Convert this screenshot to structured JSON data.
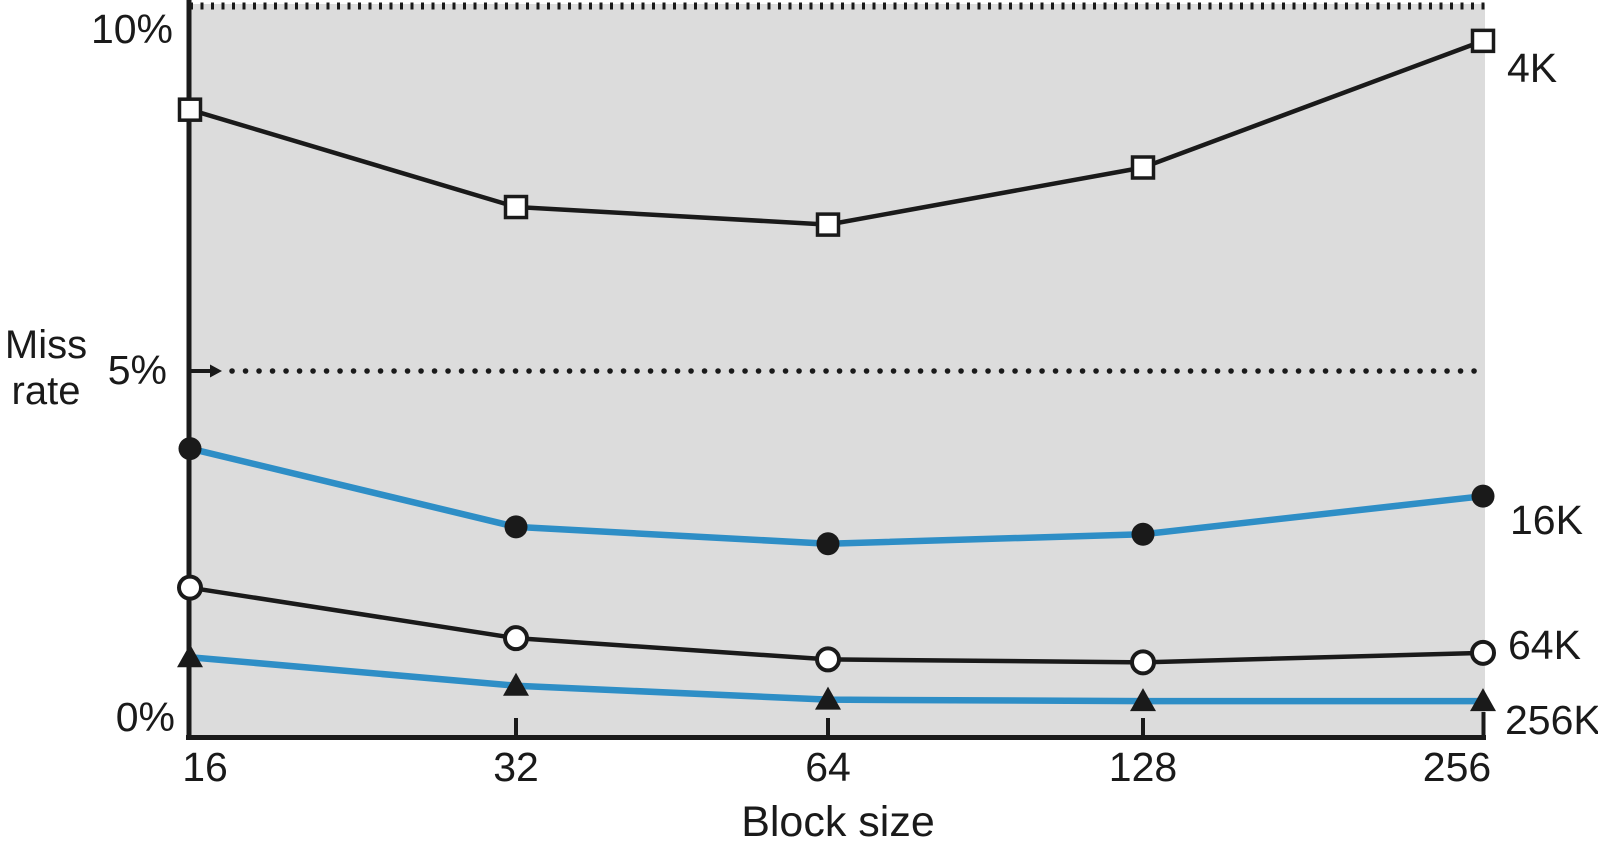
{
  "figure": {
    "y_axis_title_line1": "Miss",
    "y_axis_title_line2": "rate",
    "y_tick_labels": [
      "10%",
      "5%",
      "0%"
    ],
    "x_tick_labels": [
      "16",
      "32",
      "64",
      "128",
      "256"
    ],
    "colors": {
      "plot_background": "#dcdcdc",
      "axis_black": "#1a1a1a",
      "line_blue": "#2e8ec6",
      "marker_fill_white": "#ffffff",
      "page_background": "#ffffff"
    }
  },
  "chart_data": {
    "type": "line",
    "title": "",
    "xlabel": "Block size",
    "ylabel": "Miss rate",
    "x_scale": "log2 (equal spacing between ticks)",
    "categories": [
      16,
      32,
      64,
      128,
      256
    ],
    "series": [
      {
        "name": "4K",
        "values": [
          8.57,
          7.24,
          7.0,
          7.78,
          9.51
        ],
        "color": "#1a1a1a",
        "marker": "open-square"
      },
      {
        "name": "16K",
        "values": [
          3.94,
          2.87,
          2.64,
          2.77,
          3.29
        ],
        "color": "#2e8ec6",
        "marker": "filled-circle"
      },
      {
        "name": "64K",
        "values": [
          2.04,
          1.35,
          1.06,
          1.02,
          1.15
        ],
        "color": "#1a1a1a",
        "marker": "open-circle"
      },
      {
        "name": "256K",
        "values": [
          1.09,
          0.7,
          0.51,
          0.49,
          0.49
        ],
        "color": "#2e8ec6",
        "marker": "filled-triangle"
      }
    ],
    "ylim": [
      0,
      10
    ],
    "y_unit": "%",
    "gridlines": "dotted horizontal lines at 5% and 10%",
    "legend_position": "labels at the right end of each line"
  }
}
